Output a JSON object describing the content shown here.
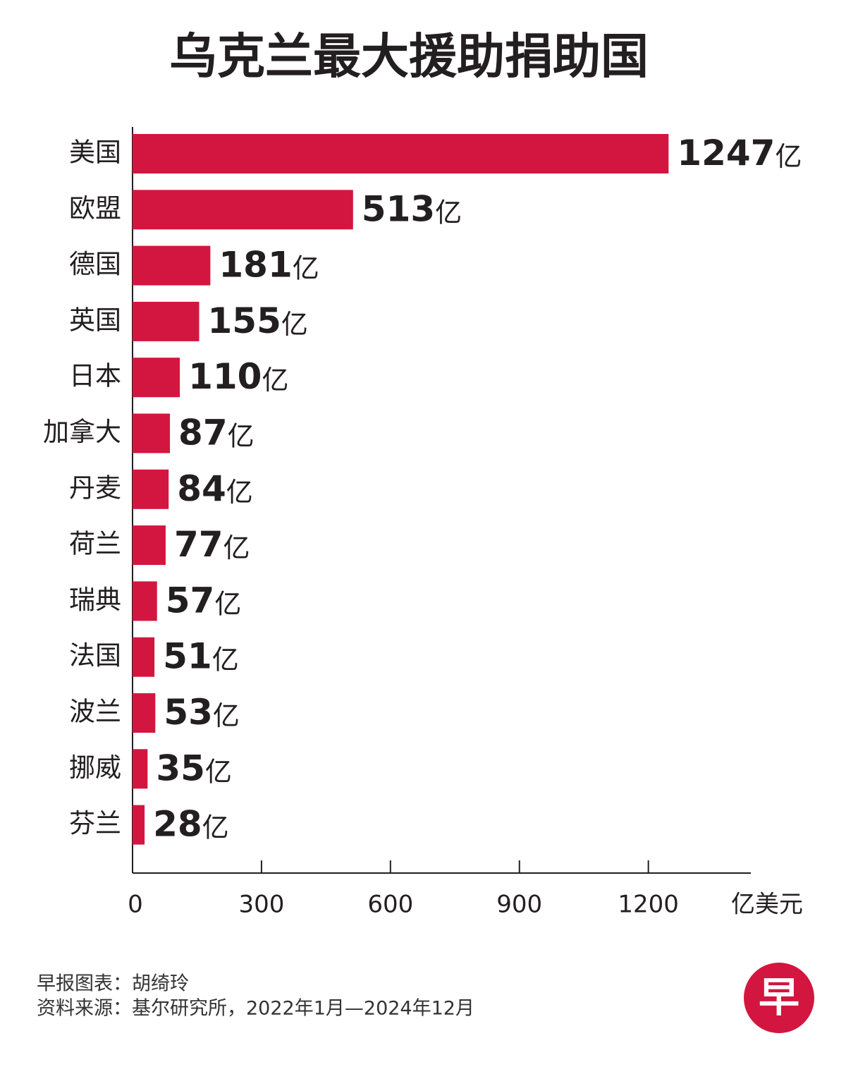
{
  "chart_data": {
    "type": "bar",
    "orientation": "horizontal",
    "title": "乌克兰最大援助捐助国",
    "categories": [
      "美国",
      "欧盟",
      "德国",
      "英国",
      "日本",
      "加拿大",
      "丹麦",
      "荷兰",
      "瑞典",
      "法国",
      "波兰",
      "挪威",
      "芬兰"
    ],
    "values": [
      1247,
      513,
      181,
      155,
      110,
      87,
      84,
      77,
      57,
      51,
      53,
      35,
      28
    ],
    "value_labels": [
      "1247亿",
      "513亿",
      "181亿",
      "155亿",
      "110亿",
      "87亿",
      "84亿",
      "77亿",
      "57亿",
      "51亿",
      "53亿",
      "35亿",
      "28亿"
    ],
    "color": "#d3163f",
    "xlim": [
      0,
      1440
    ],
    "xticks": [
      0,
      300,
      600,
      900,
      1200
    ],
    "x_label": "亿美元",
    "grid": false
  },
  "footer": {
    "credit": "早报图表：胡绮玲",
    "source": "资料来源：基尔研究所，2022年1月—2024年12月",
    "logo": "早"
  }
}
